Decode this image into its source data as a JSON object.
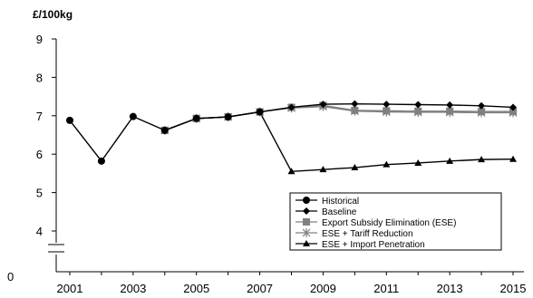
{
  "chart_data": {
    "type": "line",
    "title": "",
    "ylabel": "£/100kg",
    "xlabel": "",
    "xlim": [
      2001,
      2015
    ],
    "ylim": [
      0,
      9
    ],
    "axis_break": true,
    "x_tick_labels": [
      "2001",
      "2003",
      "2005",
      "2007",
      "2009",
      "2011",
      "2013",
      "2015"
    ],
    "y_tick_labels": [
      "0",
      "4",
      "5",
      "6",
      "7",
      "8",
      "9"
    ],
    "grid": false,
    "legend_position": "bottom-right",
    "series": [
      {
        "name": "Historical",
        "marker": "circle",
        "color": "#000000",
        "points": [
          [
            2001,
            6.88
          ],
          [
            2002,
            5.82
          ],
          [
            2003,
            6.98
          ],
          [
            2004,
            6.62
          ],
          [
            2005,
            6.93
          ],
          [
            2006,
            6.97
          ],
          [
            2007,
            7.1
          ]
        ]
      },
      {
        "name": "Baseline",
        "marker": "diamond",
        "color": "#000000",
        "points": [
          [
            2004,
            6.62
          ],
          [
            2005,
            6.93
          ],
          [
            2006,
            6.97
          ],
          [
            2007,
            7.1
          ],
          [
            2008,
            7.22
          ],
          [
            2009,
            7.3
          ],
          [
            2010,
            7.31
          ],
          [
            2011,
            7.3
          ],
          [
            2012,
            7.29
          ],
          [
            2013,
            7.28
          ],
          [
            2014,
            7.26
          ],
          [
            2015,
            7.22
          ]
        ]
      },
      {
        "name": "Export Subsidy Elimination (ESE)",
        "marker": "square",
        "color": "#808080",
        "points": [
          [
            2004,
            6.62
          ],
          [
            2005,
            6.93
          ],
          [
            2006,
            6.97
          ],
          [
            2007,
            7.1
          ],
          [
            2008,
            7.22
          ],
          [
            2009,
            7.27
          ],
          [
            2010,
            7.14
          ],
          [
            2011,
            7.13
          ],
          [
            2012,
            7.12
          ],
          [
            2013,
            7.12
          ],
          [
            2014,
            7.11
          ],
          [
            2015,
            7.11
          ]
        ]
      },
      {
        "name": "ESE + Tariff Reduction",
        "marker": "star",
        "color": "#808080",
        "points": [
          [
            2004,
            6.62
          ],
          [
            2005,
            6.93
          ],
          [
            2006,
            6.97
          ],
          [
            2007,
            7.1
          ],
          [
            2008,
            7.2
          ],
          [
            2009,
            7.24
          ],
          [
            2010,
            7.12
          ],
          [
            2011,
            7.1
          ],
          [
            2012,
            7.09
          ],
          [
            2013,
            7.09
          ],
          [
            2014,
            7.08
          ],
          [
            2015,
            7.08
          ]
        ]
      },
      {
        "name": "ESE + Import Penetration",
        "marker": "triangle",
        "color": "#000000",
        "points": [
          [
            2004,
            6.62
          ],
          [
            2005,
            6.93
          ],
          [
            2006,
            6.97
          ],
          [
            2007,
            7.1
          ],
          [
            2008,
            5.55
          ],
          [
            2009,
            5.6
          ],
          [
            2010,
            5.65
          ],
          [
            2011,
            5.73
          ],
          [
            2012,
            5.77
          ],
          [
            2013,
            5.82
          ],
          [
            2014,
            5.86
          ],
          [
            2015,
            5.87
          ]
        ]
      }
    ]
  }
}
